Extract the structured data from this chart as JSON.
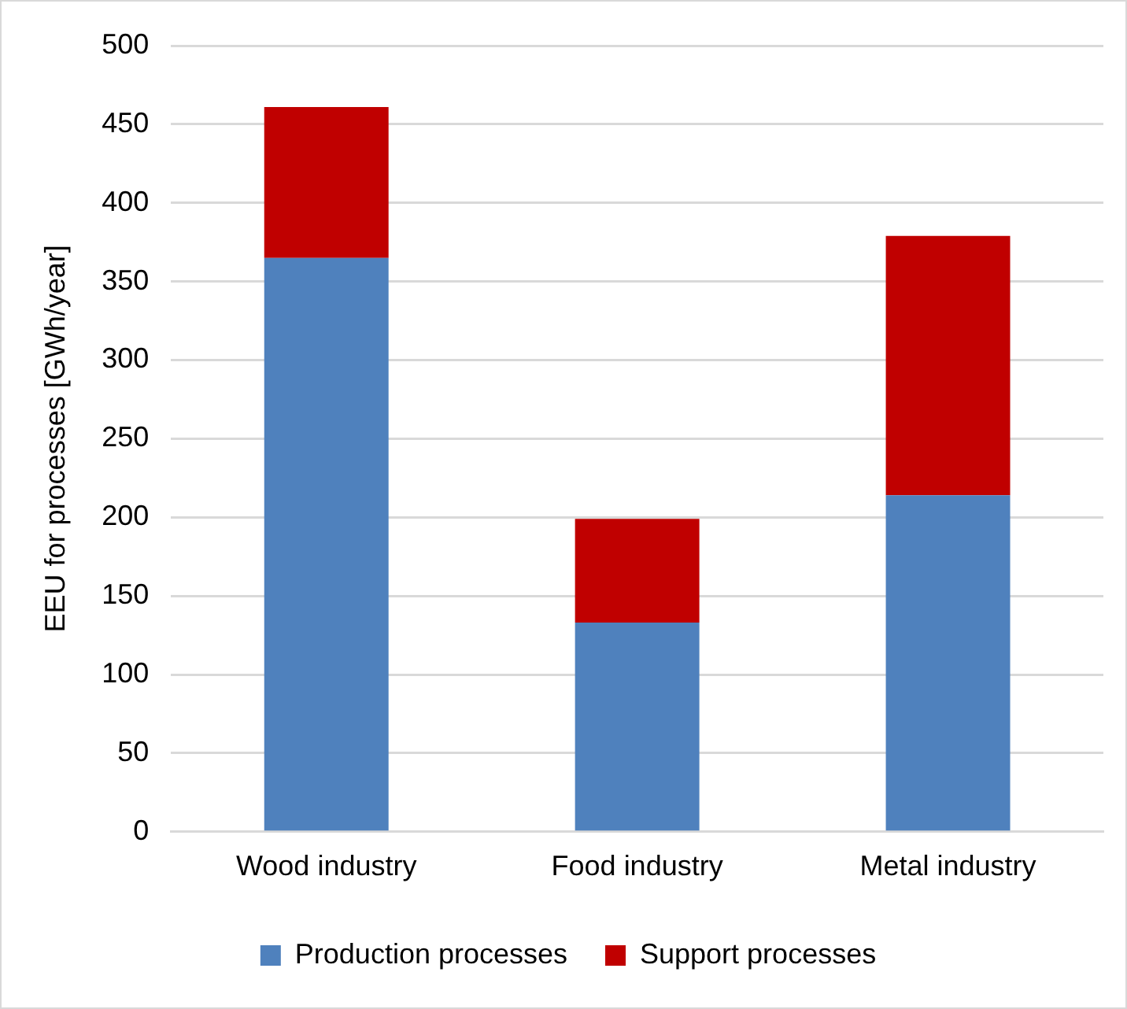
{
  "chart_data": {
    "type": "bar",
    "stacked": true,
    "ylabel": "EEU for processes [GWh/year]",
    "categories": [
      "Wood industry",
      "Food industry",
      "Metal industry"
    ],
    "series": [
      {
        "name": "Production processes",
        "color": "#4f81bd",
        "values": [
          365,
          133,
          214
        ]
      },
      {
        "name": "Support processes",
        "color": "#c00000",
        "values": [
          96,
          66,
          165
        ]
      }
    ],
    "ylim": [
      0,
      500
    ],
    "yticks": [
      0,
      50,
      100,
      150,
      200,
      250,
      300,
      350,
      400,
      450,
      500
    ],
    "grid": "y",
    "legend": "bottom"
  }
}
